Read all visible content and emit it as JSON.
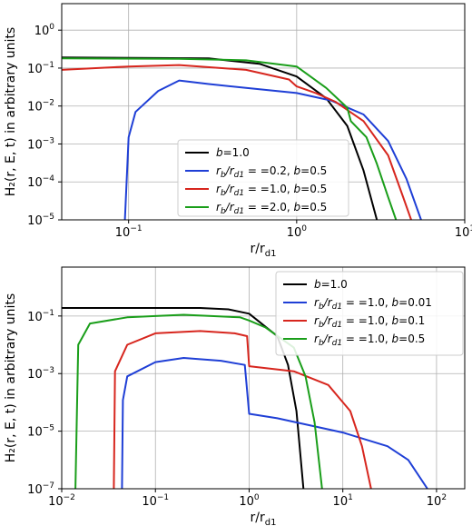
{
  "chart_data": [
    {
      "type": "line",
      "xscale": "log",
      "yscale": "log",
      "xlim": [
        0.04,
        10
      ],
      "ylim": [
        1e-05,
        5
      ],
      "xlabel_main": "r/r",
      "xlabel_sub": "d1",
      "ylabel": "H₂(r, E, t) in arbitrary units",
      "grid": true,
      "legend_position": "lower-center",
      "xticks": [
        {
          "value": 0.1,
          "base": "10",
          "exp": "−1"
        },
        {
          "value": 1,
          "base": "10",
          "exp": "0"
        },
        {
          "value": 10,
          "base": "10",
          "exp": "1"
        }
      ],
      "yticks": [
        {
          "value": 1,
          "base": "10",
          "exp": "0"
        },
        {
          "value": 0.1,
          "base": "10",
          "exp": "−1"
        },
        {
          "value": 0.01,
          "base": "10",
          "exp": "−2"
        },
        {
          "value": 0.001,
          "base": "10",
          "exp": "−3"
        },
        {
          "value": 0.0001,
          "base": "10",
          "exp": "−4"
        },
        {
          "value": 1e-05,
          "base": "10",
          "exp": "−5"
        }
      ],
      "series": [
        {
          "color": "#000000",
          "legend": {
            "b1": "b",
            "v1": "=1.0"
          },
          "points": [
            [
              0.04,
              0.19
            ],
            [
              0.3,
              0.18
            ],
            [
              0.6,
              0.13
            ],
            [
              1.0,
              0.06
            ],
            [
              1.5,
              0.016
            ],
            [
              2.0,
              0.003
            ],
            [
              2.5,
              0.0002
            ],
            [
              3.0,
              1e-05
            ]
          ]
        },
        {
          "color": "#1f3fd6",
          "legend": {
            "r": "r",
            "rsub": "b",
            "sl": "/r",
            "ssub": "d1",
            "v1": " = =0.2, ",
            "b": "b",
            "v2": "=0.5"
          },
          "points": [
            [
              0.095,
              1e-05
            ],
            [
              0.1,
              0.0015
            ],
            [
              0.11,
              0.007
            ],
            [
              0.15,
              0.025
            ],
            [
              0.2,
              0.047
            ],
            [
              0.3,
              0.038
            ],
            [
              0.5,
              0.03
            ],
            [
              1.0,
              0.022
            ],
            [
              1.6,
              0.014
            ],
            [
              2.5,
              0.006
            ],
            [
              3.5,
              0.0012
            ],
            [
              4.5,
              0.00012
            ],
            [
              5.5,
              1e-05
            ]
          ]
        },
        {
          "color": "#d7261e",
          "legend": {
            "r": "r",
            "rsub": "b",
            "sl": "/r",
            "ssub": "d1",
            "v1": " = =1.0, ",
            "b": "b",
            "v2": "=0.5"
          },
          "points": [
            [
              0.04,
              0.09
            ],
            [
              0.1,
              0.11
            ],
            [
              0.2,
              0.12
            ],
            [
              0.5,
              0.09
            ],
            [
              0.9,
              0.05
            ],
            [
              1.0,
              0.033
            ],
            [
              1.3,
              0.022
            ],
            [
              1.7,
              0.013
            ],
            [
              2.5,
              0.004
            ],
            [
              3.5,
              0.0005
            ],
            [
              4.3,
              4e-05
            ],
            [
              4.8,
              1e-05
            ]
          ]
        },
        {
          "color": "#1a9e1a",
          "legend": {
            "r": "r",
            "rsub": "b",
            "sl": "/r",
            "ssub": "d1",
            "v1": " = =2.0, ",
            "b": "b",
            "v2": "=0.5"
          },
          "points": [
            [
              0.04,
              0.18
            ],
            [
              0.2,
              0.175
            ],
            [
              0.5,
              0.16
            ],
            [
              1.0,
              0.11
            ],
            [
              1.5,
              0.03
            ],
            [
              2.0,
              0.009
            ],
            [
              2.1,
              0.004
            ],
            [
              2.6,
              0.0015
            ],
            [
              3.0,
              0.0003
            ],
            [
              3.5,
              4e-05
            ],
            [
              3.9,
              1e-05
            ]
          ]
        }
      ]
    },
    {
      "type": "line",
      "xscale": "log",
      "yscale": "log",
      "xlim": [
        0.01,
        200
      ],
      "ylim": [
        1e-07,
        5
      ],
      "xlabel_main": "r/r",
      "xlabel_sub": "d1",
      "ylabel": "H₂(r, E, t) in arbitrary units",
      "grid": true,
      "legend_position": "upper-right",
      "xticks": [
        {
          "value": 0.01,
          "base": "10",
          "exp": "−2"
        },
        {
          "value": 0.1,
          "base": "10",
          "exp": "−1"
        },
        {
          "value": 1,
          "base": "10",
          "exp": "0"
        },
        {
          "value": 10,
          "base": "10",
          "exp": "1"
        },
        {
          "value": 100,
          "base": "10",
          "exp": "2"
        }
      ],
      "yticks": [
        {
          "value": 0.1,
          "base": "10",
          "exp": "−1"
        },
        {
          "value": 0.001,
          "base": "10",
          "exp": "−3"
        },
        {
          "value": 1e-05,
          "base": "10",
          "exp": "−5"
        },
        {
          "value": 1e-07,
          "base": "10",
          "exp": "−7"
        }
      ],
      "series": [
        {
          "color": "#000000",
          "legend": {
            "b1": "b",
            "v1": "=1.0"
          },
          "points": [
            [
              0.01,
              0.19
            ],
            [
              0.3,
              0.19
            ],
            [
              0.6,
              0.17
            ],
            [
              1.0,
              0.12
            ],
            [
              2.0,
              0.02
            ],
            [
              2.6,
              0.002
            ],
            [
              3.2,
              5e-05
            ],
            [
              3.8,
              1e-07
            ]
          ]
        },
        {
          "color": "#1f3fd6",
          "legend": {
            "r": "r",
            "rsub": "b",
            "sl": "/r",
            "ssub": "d1",
            "v1": " = =1.0, ",
            "b": "b",
            "v2": "=0.01"
          },
          "points": [
            [
              0.044,
              1e-07
            ],
            [
              0.045,
              0.00012
            ],
            [
              0.05,
              0.0008
            ],
            [
              0.1,
              0.0025
            ],
            [
              0.2,
              0.0035
            ],
            [
              0.5,
              0.0028
            ],
            [
              0.9,
              0.002
            ],
            [
              1.0,
              4e-05
            ],
            [
              2.0,
              2.8e-05
            ],
            [
              10,
              9e-06
            ],
            [
              30,
              3e-06
            ],
            [
              50,
              1e-06
            ],
            [
              80,
              1e-07
            ]
          ]
        },
        {
          "color": "#d7261e",
          "legend": {
            "r": "r",
            "rsub": "b",
            "sl": "/r",
            "ssub": "d1",
            "v1": " = =1.0, ",
            "b": "b",
            "v2": "=0.1"
          },
          "points": [
            [
              0.036,
              1e-07
            ],
            [
              0.037,
              0.0012
            ],
            [
              0.05,
              0.01
            ],
            [
              0.1,
              0.025
            ],
            [
              0.3,
              0.03
            ],
            [
              0.7,
              0.025
            ],
            [
              0.95,
              0.02
            ],
            [
              1.0,
              0.0018
            ],
            [
              3.0,
              0.0012
            ],
            [
              7.0,
              0.0004
            ],
            [
              12,
              5e-05
            ],
            [
              16,
              3e-06
            ],
            [
              20,
              1e-07
            ]
          ]
        },
        {
          "color": "#1a9e1a",
          "legend": {
            "r": "r",
            "rsub": "b",
            "sl": "/r",
            "ssub": "d1",
            "v1": " = =1.0, ",
            "b": "b",
            "v2": "=0.5"
          },
          "points": [
            [
              0.014,
              1e-07
            ],
            [
              0.015,
              0.01
            ],
            [
              0.02,
              0.055
            ],
            [
              0.05,
              0.09
            ],
            [
              0.2,
              0.11
            ],
            [
              0.8,
              0.09
            ],
            [
              1.0,
              0.07
            ],
            [
              1.5,
              0.04
            ],
            [
              3.0,
              0.008
            ],
            [
              4.0,
              0.0008
            ],
            [
              5.0,
              2e-05
            ],
            [
              6.0,
              1e-07
            ]
          ]
        }
      ]
    }
  ]
}
